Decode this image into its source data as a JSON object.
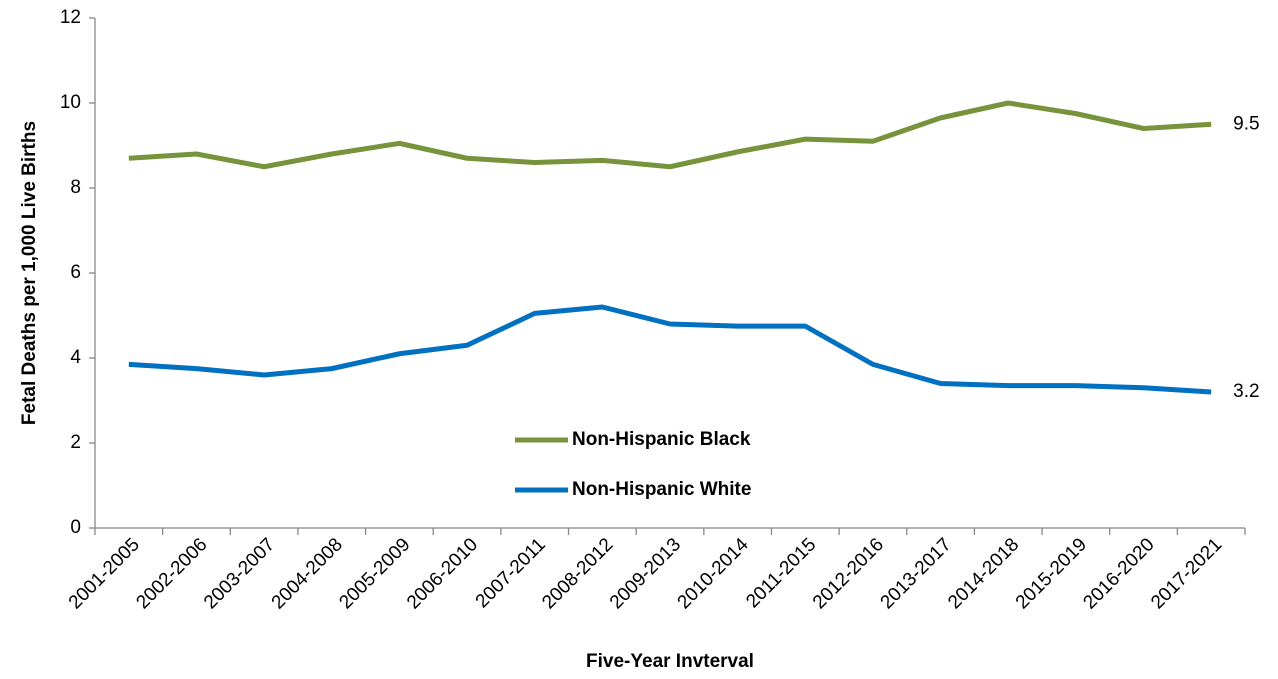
{
  "chart_data": {
    "type": "line",
    "x_label": "Five-Year Invterval",
    "y_label": "Fetal Deaths per 1,000 Live Births",
    "categories": [
      "2001-2005",
      "2002-2006",
      "2003-2007",
      "2004-2008",
      "2005-2009",
      "2006-2010",
      "2007-2011",
      "2008-2012",
      "2009-2013",
      "2010-2014",
      "2011-2015",
      "2012-2016",
      "2013-2017",
      "2014-2018",
      "2015-2019",
      "2016-2020",
      "2017-2021"
    ],
    "series": [
      {
        "name": "Non-Hispanic Black",
        "color": "#77933c",
        "values": [
          8.7,
          8.8,
          8.5,
          8.8,
          9.05,
          8.7,
          8.6,
          8.65,
          8.5,
          8.85,
          9.15,
          9.1,
          9.65,
          10.0,
          9.75,
          9.4,
          9.5
        ]
      },
      {
        "name": "Non-Hispanic White",
        "color": "#0070c0",
        "values": [
          3.85,
          3.75,
          3.6,
          3.75,
          4.1,
          4.3,
          5.05,
          5.2,
          4.8,
          4.75,
          4.75,
          3.85,
          3.4,
          3.35,
          3.35,
          3.3,
          3.2
        ]
      }
    ],
    "ylim": [
      0,
      12
    ],
    "yticks": [
      0,
      2,
      4,
      6,
      8,
      10,
      12
    ],
    "grid": false,
    "end_labels": true,
    "legend": "center"
  }
}
